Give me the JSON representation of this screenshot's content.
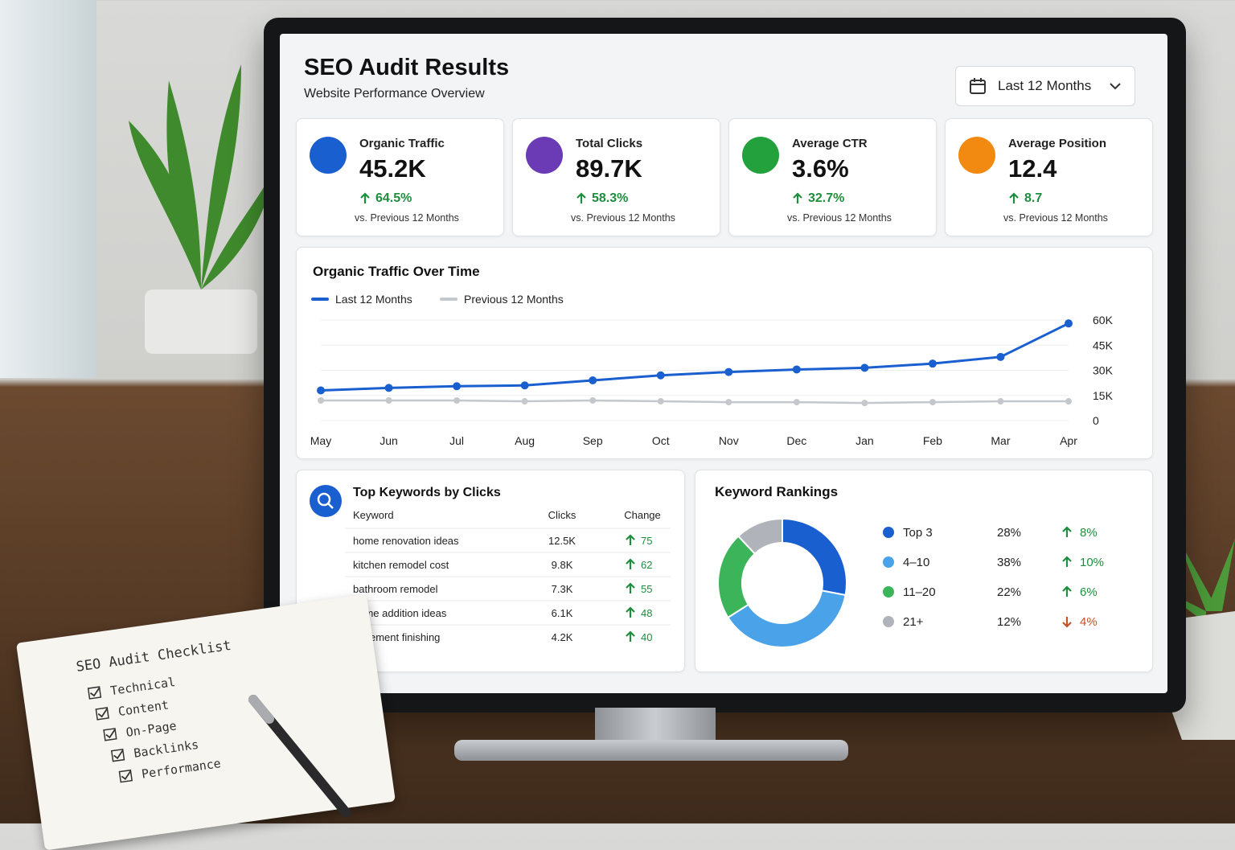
{
  "header": {
    "title": "SEO Audit Results",
    "subtitle": "Website Performance Overview",
    "date_range": "Last 12 Months"
  },
  "kpis": [
    {
      "label": "Organic Traffic",
      "value": "45.2K",
      "change": "64.5%",
      "direction": "up",
      "note": "vs. Previous 12 Months",
      "color": "#1a5fd0"
    },
    {
      "label": "Total Clicks",
      "value": "89.7K",
      "change": "58.3%",
      "direction": "up",
      "note": "vs. Previous 12 Months",
      "color": "#6a3bb5"
    },
    {
      "label": "Average CTR",
      "value": "3.6%",
      "change": "32.7%",
      "direction": "up",
      "note": "vs. Previous 12 Months",
      "color": "#22a13d"
    },
    {
      "label": "Average Position",
      "value": "12.4",
      "change": "8.7",
      "direction": "up",
      "note": "vs. Previous 12 Months",
      "color": "#f28a12"
    }
  ],
  "chart_data": [
    {
      "type": "line",
      "title": "Organic Traffic Over Time",
      "categories": [
        "May",
        "Jun",
        "Jul",
        "Aug",
        "Sep",
        "Oct",
        "Nov",
        "Dec",
        "Jan",
        "Feb",
        "Mar",
        "Apr"
      ],
      "series": [
        {
          "name": "Last 12 Months",
          "color": "#1a5fd0",
          "values": [
            18000,
            19500,
            20500,
            21000,
            24000,
            27000,
            29000,
            30500,
            31500,
            34000,
            38000,
            58000
          ]
        },
        {
          "name": "Previous 12 Months",
          "color": "#c4c7cc",
          "values": [
            12000,
            12000,
            12000,
            11500,
            12000,
            11500,
            11000,
            11000,
            10500,
            11000,
            11500,
            11500
          ]
        }
      ],
      "ylim": [
        0,
        60000
      ],
      "yticks": [
        0,
        {
          "value": 15000,
          "label": "15K"
        },
        {
          "value": 30000,
          "label": "30K"
        },
        {
          "value": 45000,
          "label": "45K"
        },
        {
          "value": 60000,
          "label": "60K"
        }
      ],
      "y_axis_side": "right",
      "grid": true
    },
    {
      "type": "pie",
      "title": "Keyword Rankings",
      "donut": true,
      "categories": [
        "Top 3",
        "4–10",
        "11–20",
        "21+"
      ],
      "values": [
        28,
        38,
        22,
        12
      ],
      "value_labels": [
        "28%",
        "38%",
        "22%",
        "12%"
      ],
      "colors": [
        "#1a5fd0",
        "#4aa3e8",
        "#3cb55a",
        "#b0b4ba"
      ],
      "changes": [
        "8%",
        "10%",
        "6%",
        "4%"
      ],
      "change_directions": [
        "up",
        "up",
        "up",
        "down"
      ]
    }
  ],
  "keywords": {
    "title": "Top Keywords by Clicks",
    "columns": [
      "Keyword",
      "Clicks",
      "Change"
    ],
    "rows": [
      [
        "home renovation ideas",
        "12.5K",
        "75"
      ],
      [
        "kitchen remodel cost",
        "9.8K",
        "62"
      ],
      [
        "bathroom remodel",
        "7.3K",
        "55"
      ],
      [
        "home addition ideas",
        "6.1K",
        "48"
      ],
      [
        "basement finishing",
        "4.2K",
        "40"
      ]
    ]
  },
  "notebook": {
    "title": "SEO Audit Checklist",
    "items": [
      "Technical",
      "Content",
      "On-Page",
      "Backlinks",
      "Performance"
    ]
  }
}
